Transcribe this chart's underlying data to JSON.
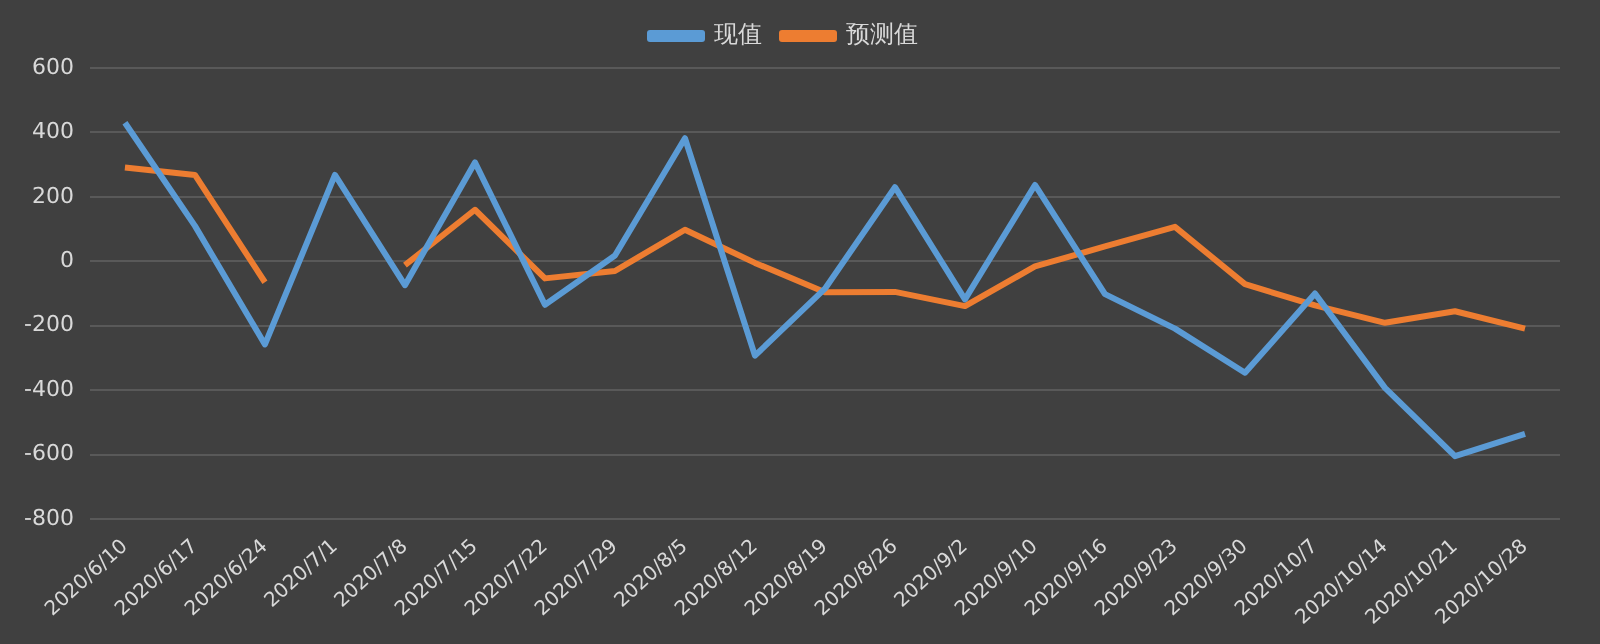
{
  "chart_data": {
    "type": "line",
    "categories": [
      "2020/6/10",
      "2020/6/17",
      "2020/6/24",
      "2020/7/1",
      "2020/7/8",
      "2020/7/15",
      "2020/7/22",
      "2020/7/29",
      "2020/8/5",
      "2020/8/12",
      "2020/8/19",
      "2020/8/26",
      "2020/9/2",
      "2020/9/10",
      "2020/9/16",
      "2020/9/23",
      "2020/9/30",
      "2020/10/7",
      "2020/10/14",
      "2020/10/21",
      "2020/10/28"
    ],
    "series": [
      {
        "name": "现值",
        "color": "#5b9bd5",
        "values": [
          430,
          110,
          -258,
          268,
          -74,
          307,
          -135,
          18,
          382,
          -293,
          -85,
          230,
          -118,
          237,
          -102,
          -209,
          -346,
          -100,
          -393,
          -605,
          -536
        ]
      },
      {
        "name": "预测值",
        "color": "#ed7d31",
        "values": [
          291,
          268,
          -65,
          null,
          -12,
          160,
          -53,
          -30,
          98,
          -5,
          -96,
          -95,
          -139,
          -16,
          46,
          107,
          -71,
          -137,
          -191,
          -155,
          -209
        ]
      }
    ],
    "ylim": [
      -800,
      600
    ],
    "yticks": [
      -800,
      -600,
      -400,
      -200,
      0,
      200,
      400,
      600
    ],
    "grid": "y",
    "legend": "top",
    "marker": "none",
    "line_style": "solid"
  }
}
